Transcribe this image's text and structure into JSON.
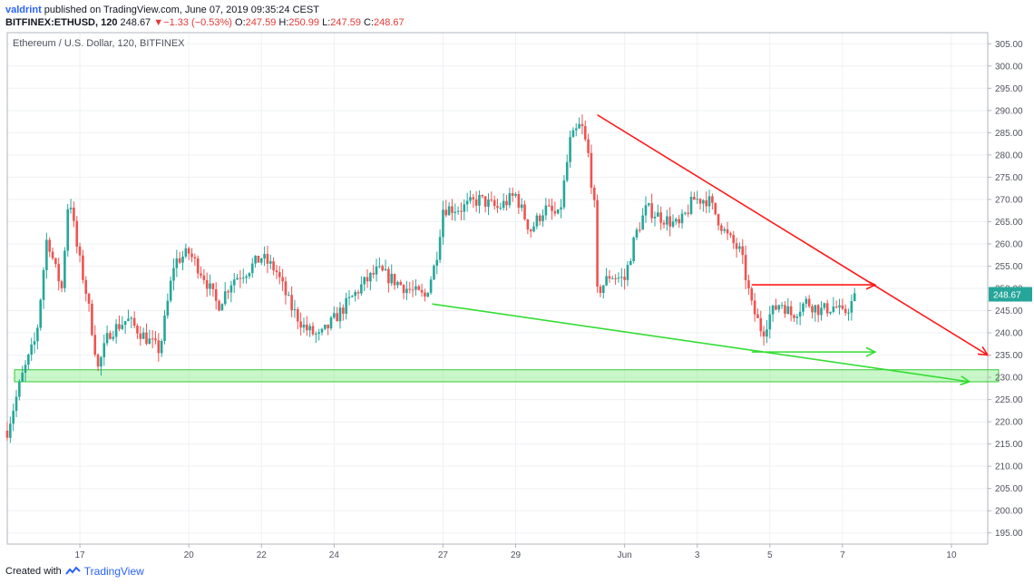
{
  "header": {
    "user": "valdrint",
    "published_text": "published on TradingView.com, June 07, 2019 09:35:24 CEST",
    "symbol": "BITFINEX:ETHUSD, 120",
    "last": "248.67",
    "change": "−1.33 (−0.53%)",
    "o_label": "O:",
    "o": "247.59",
    "h_label": "H:",
    "h": "250.99",
    "l_label": "L:",
    "l": "247.59",
    "c_label": "C:",
    "c": "248.67"
  },
  "footer": {
    "created_with": "Created with",
    "brand": "TradingView"
  },
  "colors": {
    "up": "#26a69a",
    "down": "#ef5350",
    "trend_red": "#ff1a1a",
    "trend_green": "#33dd33",
    "zone": "#88ee88",
    "price_tag": "#26a69a"
  },
  "chart_data": {
    "type": "candlestick",
    "title": "Ethereum / U.S. Dollar, 120, BITFINEX",
    "ylim": [
      192.5,
      307.5
    ],
    "y_ticks": [
      "305.00",
      "300.00",
      "295.00",
      "290.00",
      "285.00",
      "280.00",
      "275.00",
      "270.00",
      "265.00",
      "260.00",
      "255.00",
      "250.00",
      "245.00",
      "240.00",
      "235.00",
      "230.00",
      "225.00",
      "220.00",
      "215.00",
      "210.00",
      "205.00",
      "200.00",
      "195.00"
    ],
    "x_ticks": [
      "17",
      "20",
      "22",
      "24",
      "27",
      "29",
      "Jun",
      "3",
      "5",
      "7",
      "10"
    ],
    "x_tick_days": [
      17,
      20,
      22,
      24,
      27,
      29,
      32,
      34,
      36,
      38,
      41
    ],
    "x_range_days": [
      15.0,
      42.0
    ],
    "last_price": "248.67",
    "grid": true,
    "anchors": [
      [
        15.0,
        218
      ],
      [
        15.4,
        230
      ],
      [
        15.8,
        239
      ],
      [
        16.1,
        262
      ],
      [
        16.3,
        255
      ],
      [
        16.5,
        250
      ],
      [
        16.7,
        272
      ],
      [
        16.9,
        260
      ],
      [
        17.2,
        248
      ],
      [
        17.5,
        232
      ],
      [
        17.8,
        240
      ],
      [
        18.3,
        243
      ],
      [
        18.8,
        239
      ],
      [
        19.2,
        236
      ],
      [
        19.6,
        256
      ],
      [
        20.0,
        258
      ],
      [
        20.4,
        253
      ],
      [
        20.8,
        246
      ],
      [
        21.2,
        252
      ],
      [
        21.6,
        254
      ],
      [
        22.0,
        257
      ],
      [
        22.4,
        254
      ],
      [
        22.8,
        246
      ],
      [
        23.2,
        241
      ],
      [
        23.6,
        239
      ],
      [
        24.0,
        243
      ],
      [
        24.4,
        247
      ],
      [
        24.8,
        251
      ],
      [
        25.2,
        254
      ],
      [
        25.6,
        252
      ],
      [
        26.0,
        250
      ],
      [
        26.5,
        248
      ],
      [
        26.8,
        256
      ],
      [
        27.0,
        268
      ],
      [
        27.5,
        268
      ],
      [
        28.0,
        270
      ],
      [
        28.5,
        268
      ],
      [
        29.0,
        271
      ],
      [
        29.4,
        263
      ],
      [
        29.8,
        268
      ],
      [
        30.2,
        266
      ],
      [
        30.5,
        283
      ],
      [
        30.8,
        287
      ],
      [
        31.0,
        280
      ],
      [
        31.2,
        266
      ],
      [
        31.25,
        249
      ],
      [
        31.6,
        253
      ],
      [
        32.0,
        252
      ],
      [
        32.3,
        262
      ],
      [
        32.6,
        268
      ],
      [
        33.0,
        266
      ],
      [
        33.5,
        264
      ],
      [
        33.9,
        270
      ],
      [
        34.3,
        270
      ],
      [
        34.8,
        262
      ],
      [
        35.2,
        258
      ],
      [
        35.5,
        246
      ],
      [
        35.8,
        240
      ],
      [
        36.0,
        244
      ],
      [
        36.3,
        247
      ],
      [
        36.6,
        244
      ],
      [
        37.0,
        247
      ],
      [
        37.4,
        245
      ],
      [
        37.8,
        246
      ],
      [
        38.0,
        244
      ],
      [
        38.2,
        246
      ],
      [
        38.4,
        248.67
      ]
    ],
    "annotations": [
      {
        "kind": "trendline",
        "color": "red",
        "from": [
          31.25,
          289.0
        ],
        "to": [
          42.0,
          235.0
        ],
        "arrow": true
      },
      {
        "kind": "trendline",
        "color": "red",
        "from": [
          35.5,
          250.8
        ],
        "to": [
          38.9,
          250.8
        ],
        "arrow": true
      },
      {
        "kind": "trendline",
        "color": "green",
        "from": [
          26.7,
          246.5
        ],
        "to": [
          41.5,
          229.0
        ],
        "arrow": true
      },
      {
        "kind": "trendline",
        "color": "green",
        "from": [
          35.5,
          235.7
        ],
        "to": [
          38.9,
          235.7
        ],
        "arrow": true
      },
      {
        "kind": "zone",
        "color": "green",
        "x": [
          15.2,
          42.3
        ],
        "y": [
          229.0,
          231.7
        ]
      }
    ]
  }
}
